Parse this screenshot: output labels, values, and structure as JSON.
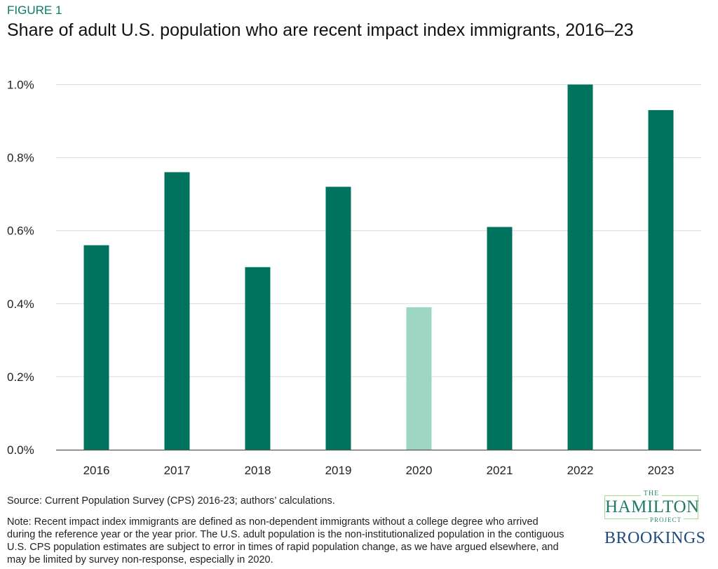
{
  "figure_label": "FIGURE 1",
  "chart_data": {
    "type": "bar",
    "title": "Share of adult U.S. population who are recent impact index immigrants, 2016–23",
    "categories": [
      "2016",
      "2017",
      "2018",
      "2019",
      "2020",
      "2021",
      "2022",
      "2023"
    ],
    "values": [
      0.56,
      0.76,
      0.5,
      0.72,
      0.39,
      0.61,
      1.0,
      0.93
    ],
    "unit": "%",
    "ylim": [
      0,
      1.0
    ],
    "yticks": [
      "0.0%",
      "0.2%",
      "0.4%",
      "0.6%",
      "0.8%",
      "1.0%"
    ],
    "ytick_values": [
      0,
      0.2,
      0.4,
      0.6,
      0.8,
      1.0
    ],
    "grid": true,
    "colors": {
      "default": "#00735f",
      "highlight_2020": "#9dd6c3"
    },
    "highlighted": "2020"
  },
  "source": "Source: Current Population Survey (CPS) 2016-23; authors’ calculations.",
  "note": "Note: Recent impact index immigrants are defined as non-dependent immigrants without a college degree who arrived during the reference year or the year prior. The U.S. adult population is the non-institutionalized population in the contiguous U.S. CPS population estimates are subject to error in times of rapid population change, as we have argued elsewhere, and may be limited by survey non-response, especially in 2020.",
  "logo": {
    "the": "THE",
    "hamilton": "HAMILTON",
    "project": "PROJECT",
    "brookings": "BROOKINGS"
  }
}
